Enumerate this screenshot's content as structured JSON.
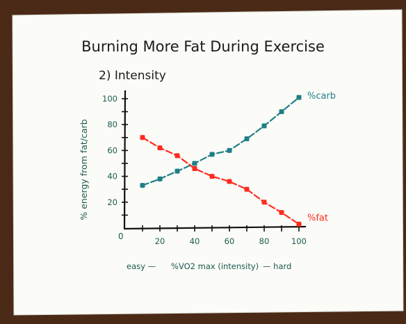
{
  "chart_data": {
    "type": "line",
    "title": "Burning More Fat During Exercise",
    "subtitle": "2) Intensity",
    "ylabel": "% energy from fat/carb",
    "xlabel": "%VO2 max (intensity)",
    "xlabel_prefix": "easy —",
    "xlabel_suffix": "— hard",
    "xlim": [
      0,
      100
    ],
    "ylim": [
      0,
      100
    ],
    "x_ticks": [
      "20",
      "40",
      "60",
      "80",
      "100"
    ],
    "y_ticks": [
      "20",
      "40",
      "60",
      "80",
      "100"
    ],
    "origin_label": "0",
    "grid": false,
    "x": [
      10,
      20,
      30,
      40,
      50,
      60,
      70,
      80,
      90,
      100
    ],
    "series": [
      {
        "name": "%carb",
        "color": "#1f7f86",
        "values": [
          33,
          38,
          44,
          50,
          57,
          60,
          69,
          79,
          90,
          101
        ]
      },
      {
        "name": "%fat",
        "color": "#ff2b1c",
        "values": [
          70,
          62,
          56,
          46,
          40,
          36,
          30,
          20,
          12,
          3
        ]
      }
    ],
    "axis_color": "#111111",
    "label_color": "#1a5a4c",
    "title_color": "#1a1a1a"
  }
}
